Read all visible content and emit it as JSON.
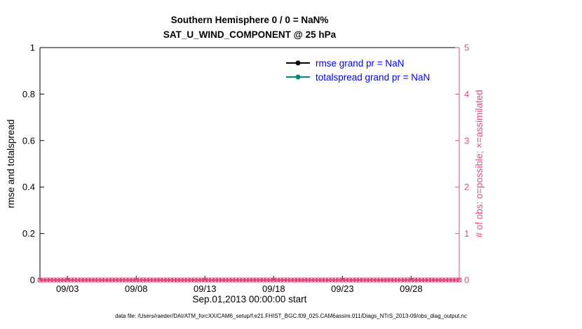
{
  "figure": {
    "background": "#ffffff"
  },
  "colors": {
    "axis_black": "#000000",
    "obs_pink": "#e8487e",
    "totalspread_teal": "#00897b",
    "legend_blue": "#0000ee"
  },
  "caption": "data file: /Users/raeder/DAI/ATM_forcXX/CAM6_setup/f.e21.FHIST_BGC.f09_025.CAM6assim.011/Diags_NTrS_2013-09/obs_diag_output.nc",
  "chart_data": {
    "type": "line",
    "title": "Southern Hemisphere 0 / 0 = NaN%",
    "subtitle": "SAT_U_WIND_COMPONENT @ 25 hPa",
    "xlabel": "Sep.01,2013 00:00:00 start",
    "ylabel_left": "rmse and totalspread",
    "ylabel_right": "# of obs: o=possible; ×=assimilated",
    "x_axis": {
      "start_label": "Sep.01,2013 00:00:00",
      "range_days": [
        0,
        30.5
      ],
      "tick_days": [
        2,
        7,
        12,
        17,
        22,
        27
      ],
      "tick_labels": [
        "09/03",
        "09/08",
        "09/13",
        "09/18",
        "09/23",
        "09/28"
      ]
    },
    "y_left": {
      "lim": [
        0,
        1
      ],
      "ticks": [
        0,
        0.2,
        0.4,
        0.6,
        0.8,
        1
      ],
      "tick_labels": [
        "0",
        "0.2",
        "0.4",
        "0.6",
        "0.8",
        "1"
      ]
    },
    "y_right": {
      "lim": [
        0,
        5
      ],
      "ticks": [
        0,
        1,
        2,
        3,
        4,
        5
      ],
      "tick_labels": [
        "0",
        "1",
        "2",
        "3",
        "4",
        "5"
      ]
    },
    "legend": [
      {
        "label": "rmse grand pr = NaN",
        "line_color": "#000000",
        "marker": "filled-circle"
      },
      {
        "label": "totalspread grand pr = NaN",
        "line_color": "#00897b",
        "marker": "filled-circle"
      }
    ],
    "series": [
      {
        "name": "rmse",
        "values": "NaN",
        "plotted": false
      },
      {
        "name": "totalspread",
        "values": "NaN",
        "plotted": false
      },
      {
        "name": "possible obs",
        "marker": "o",
        "color": "#e8487e",
        "constant_value": 0,
        "points_per_day": 4
      },
      {
        "name": "assimilated obs",
        "marker": "x",
        "color": "#e8487e",
        "constant_value": 0,
        "points_per_day": 4
      }
    ]
  }
}
